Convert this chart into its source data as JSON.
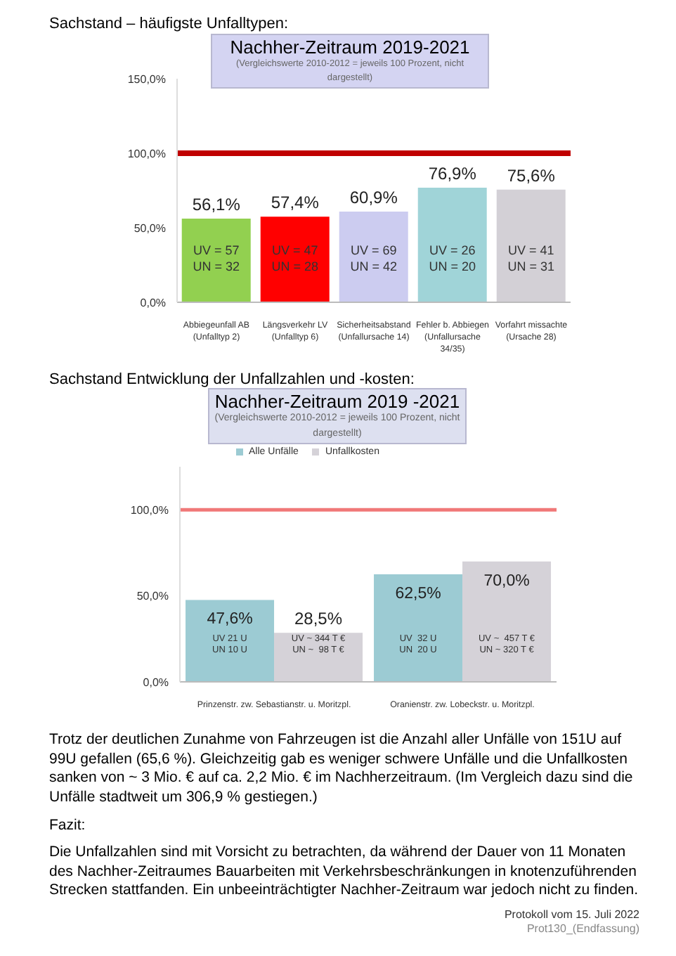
{
  "chart_data": [
    {
      "type": "bar",
      "title": "Nachher-Zeitraum 2019-2021",
      "subtitle": "(Vergleichswerte 2010-2012 = jeweils 100 Prozent, nicht dargestellt)",
      "categories": [
        "Abbiegeunfall AB\n(Unfalltyp 2)",
        "Längsverkehr LV\n(Unfalltyp 6)",
        "Sicherheitsabstand\n(Unfallursache 14)",
        "Fehler b. Abbiegen\n(Unfallursache\n34/35)",
        "Vorfahrt missachte\n(Ursache 28)"
      ],
      "values": [
        56.1,
        57.4,
        60.9,
        76.9,
        75.6
      ],
      "colors": [
        "#92d050",
        "#ff0000",
        "#ccccf0",
        "#a0d4d8",
        "#d3d0d6"
      ],
      "value_labels": [
        "56,1%",
        "57,4%",
        "60,9%",
        "76,9%",
        "75,6%"
      ],
      "ylim": [
        0,
        150
      ],
      "yticks": [
        {
          "value": 0,
          "label": "0,0%"
        },
        {
          "value": 50,
          "label": "50,0%"
        },
        {
          "value": 100,
          "label": "100,0%"
        },
        {
          "value": 150,
          "label": "150,0%"
        }
      ],
      "ref_lines": [
        {
          "axis": "y",
          "value": 100,
          "color": "#c00000"
        }
      ],
      "legend": false,
      "annotations": [
        "Sachstand – häufigste Unfalltypen:",
        "UV = 57\nUN = 32",
        "UV = 47\nUN = 28",
        "UV = 69\nUN = 42",
        "UV = 26\nUN = 20",
        "UV = 41\nUN = 31"
      ]
    },
    {
      "type": "bar",
      "title": "Nachher-Zeitraum 2019 -2021",
      "subtitle": "(Vergleichswerte 2010-2012 = jeweils 100 Prozent, nicht dargestellt)",
      "categories": [
        "Prinzenstr. zw. Sebastianstr. u. Moritzpl.",
        "Oranienstr. zw. Lobeckstr. u. Moritzpl."
      ],
      "series": [
        {
          "name": "Alle Unfälle",
          "color": "#9ccbd3",
          "values": [
            47.6,
            62.5
          ],
          "value_labels": [
            "47,6%",
            "62,5%"
          ]
        },
        {
          "name": "Unfallkosten",
          "color": "#d5d2d8",
          "values": [
            28.5,
            70.0
          ],
          "value_labels": [
            "28,5%",
            "70,0%"
          ]
        }
      ],
      "ylim": [
        0,
        125
      ],
      "yticks": [
        {
          "value": 0,
          "label": "0,0%"
        },
        {
          "value": 50,
          "label": "50,0%"
        },
        {
          "value": 100,
          "label": "100,0%"
        }
      ],
      "ref_lines": [
        {
          "axis": "y",
          "value": 100,
          "color": "#f07878"
        }
      ],
      "legend": "top",
      "annotations": [
        "Sachstand Entwicklung der Unfallzahlen und -kosten:",
        "Trotz der deutlichen Zunahme von Fahrzeugen ist die Anzahl aller Unfälle von 151U auf 99U gefallen (65,6 %). Gleichzeitig gab es weniger schwere Unfälle und die Unfallkosten sanken von ~ 3 Mio. € auf ca. 2,2 Mio. € im Nachherzeitraum. (Im Vergleich dazu sind die Unfälle stadtweit um 306,9 % gestiegen.)",
        "Fazit:",
        "Die Unfallzahlen sind mit Vorsicht zu betrachten, da während der Dauer von 11 Monaten des Nachher-Zeitraumes Bauarbeiten mit Verkehrsbeschränkungen in knotenzuführenden Strecken stattfanden. Ein unbeeinträchtigter Nachher-Zeitraum war jedoch nicht zu finden.",
        "Protokoll vom 15. Juli 2022",
        "Prot130_(Endfassung)",
        "UV 21 U\nUN 10 U",
        "UV ~ 344 T €\nUN ~  98 T €",
        "UV  32 U\nUN  20 U",
        "UV ~  457 T €\nUN ~ 320 T €"
      ]
    }
  ]
}
